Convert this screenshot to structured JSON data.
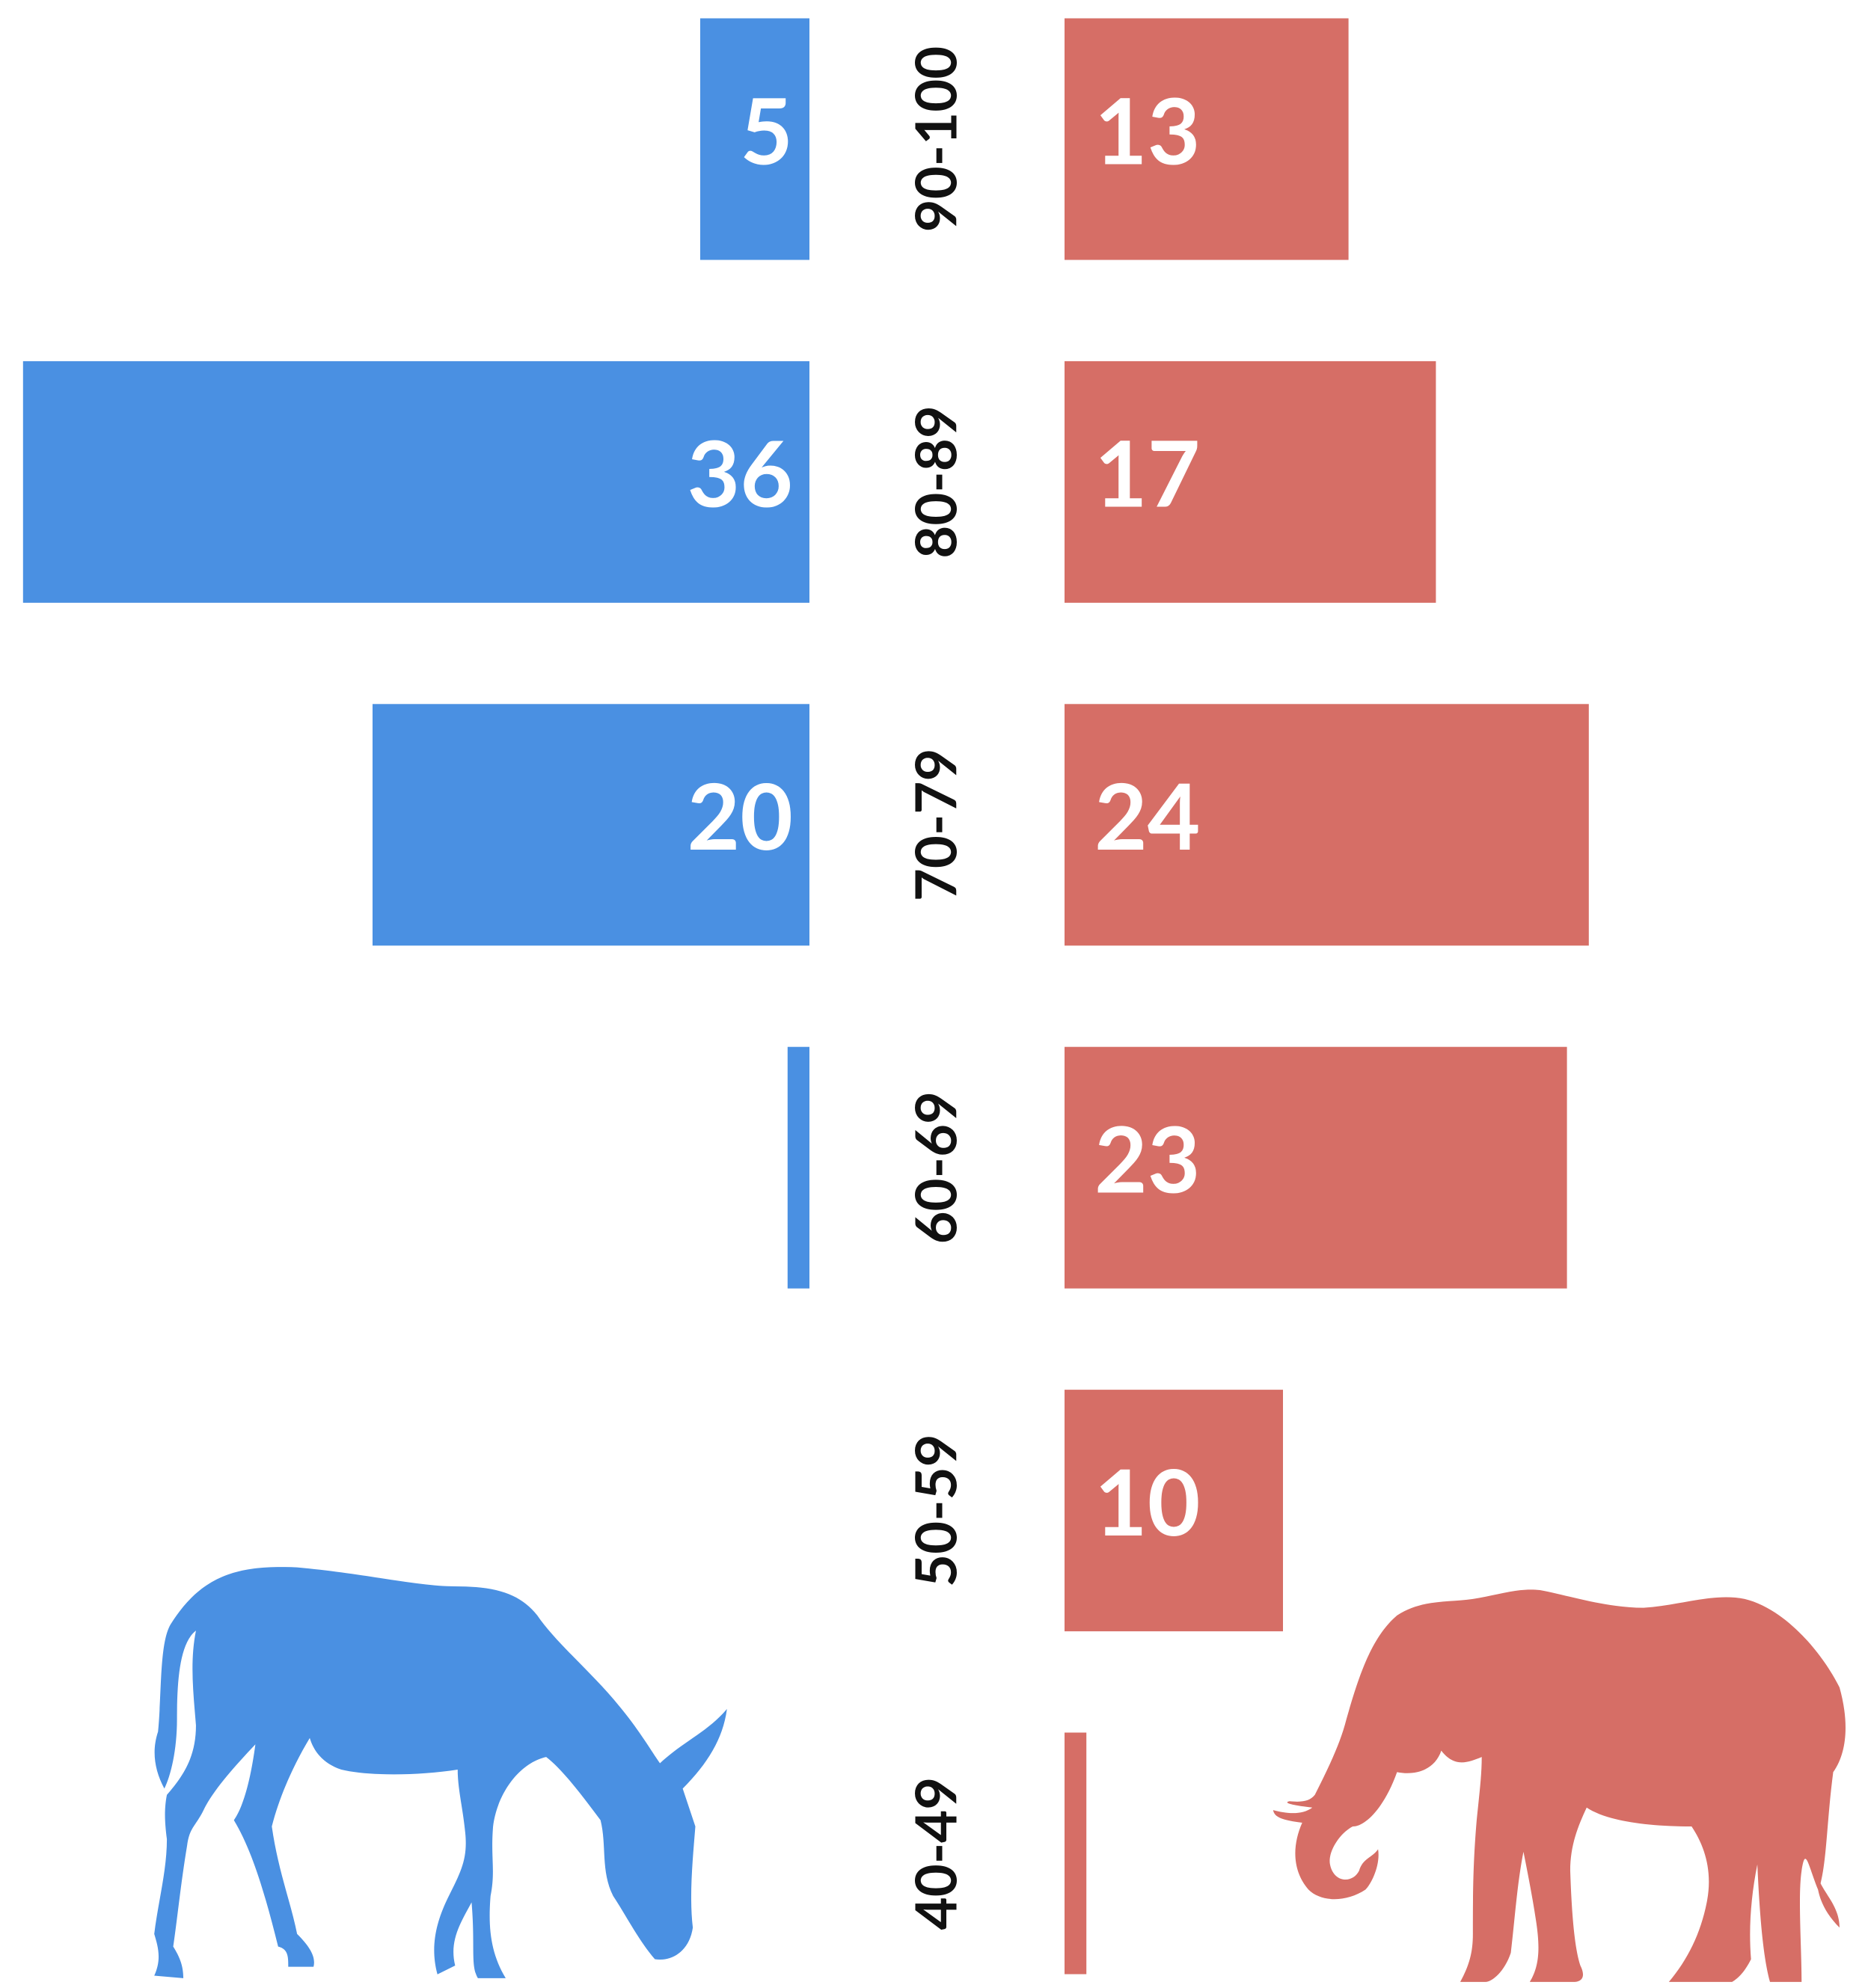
{
  "chart_data": {
    "type": "butterfly-bar",
    "categories": [
      "90-100",
      "80-89",
      "70-79",
      "60-69",
      "50-59",
      "40-49"
    ],
    "series": [
      {
        "color": "#4a90e2",
        "values": [
          5,
          36,
          20,
          1,
          null,
          null
        ],
        "value_labels": [
          "5",
          "36",
          "20",
          null,
          null,
          null
        ]
      },
      {
        "color": "#d66e66",
        "values": [
          13,
          17,
          24,
          23,
          10,
          1
        ],
        "value_labels": [
          "13",
          "17",
          "24",
          "23",
          "10",
          null
        ]
      }
    ]
  }
}
